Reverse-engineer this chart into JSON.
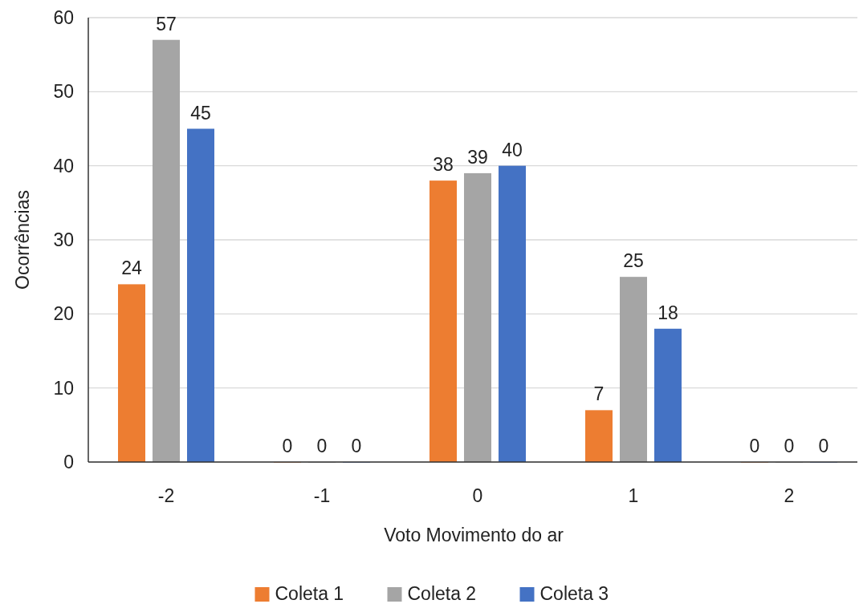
{
  "chart_data": {
    "type": "bar",
    "xlabel": "Voto Movimento do ar",
    "ylabel": "Ocorrências",
    "categories": [
      "-2",
      "-1",
      "0",
      "1",
      "2"
    ],
    "series": [
      {
        "name": "Coleta 1",
        "color": "#ed7d31",
        "values": [
          24,
          0,
          38,
          7,
          0
        ]
      },
      {
        "name": "Coleta 2",
        "color": "#a5a5a5",
        "values": [
          57,
          0,
          39,
          25,
          0
        ]
      },
      {
        "name": "Coleta 3",
        "color": "#4472c4",
        "values": [
          45,
          0,
          40,
          18,
          0
        ]
      }
    ],
    "ylim": [
      0,
      60
    ],
    "yticks": [
      0,
      10,
      20,
      30,
      40,
      50,
      60
    ],
    "grid": "y",
    "legend": "bottom",
    "data_labels": true
  }
}
